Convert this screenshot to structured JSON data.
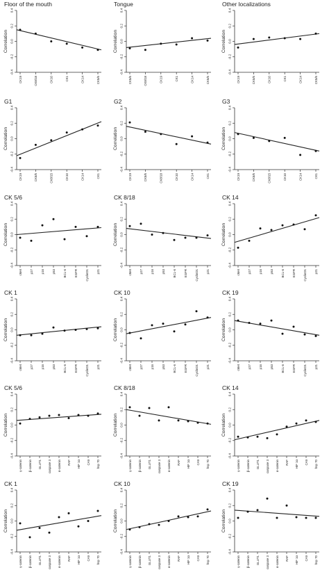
{
  "figure": {
    "panel_count": 18
  },
  "chart_data": [
    {
      "type": "scatter",
      "title": "Floor of the mouth",
      "ylabel": "Correlation",
      "categories": [
        "CK19",
        "CK8/18",
        "CK10",
        "CK1",
        "CK14",
        "CK5/6"
      ],
      "values": [
        0.15,
        0.1,
        0.0,
        -0.03,
        -0.08,
        -0.11
      ],
      "trend": [
        0.15,
        -0.11
      ],
      "ylim": [
        -0.4,
        0.4
      ],
      "yticks": [
        "-0.4",
        "-0.2",
        "0.0",
        "0.2",
        "0.4"
      ]
    },
    {
      "type": "scatter",
      "title": "Tongue",
      "ylabel": "Correlation",
      "categories": [
        "CK5/6",
        "CK8/18",
        "CK19",
        "CK1",
        "CK14",
        "CK5/6"
      ],
      "values": [
        -0.09,
        -0.11,
        -0.03,
        -0.04,
        0.04,
        0.01
      ],
      "trend": [
        -0.08,
        0.04
      ],
      "ylim": [
        -0.4,
        0.4
      ],
      "yticks": [
        "-0.4",
        "-0.2",
        "0.0",
        "0.2",
        "0.4"
      ]
    },
    {
      "type": "scatter",
      "title": "Other localizations",
      "ylabel": "Correlation",
      "categories": [
        "CK19",
        "CK5/6",
        "CK10",
        "CK1",
        "CK14",
        "CK5/6"
      ],
      "values": [
        -0.08,
        0.03,
        0.05,
        0.04,
        0.03,
        0.1
      ],
      "trend": [
        -0.04,
        0.1
      ],
      "ylim": [
        -0.4,
        0.4
      ],
      "yticks": [
        "-0.4",
        "-0.2",
        "0.0",
        "0.2",
        "0.4"
      ]
    },
    {
      "type": "scatter",
      "title": "G1",
      "ylabel": "Correlation",
      "categories": [
        "CK19",
        "CK5/6",
        "CK8/15",
        "CK10",
        "CK14",
        "CK1"
      ],
      "values": [
        -0.25,
        -0.08,
        -0.02,
        0.08,
        0.12,
        0.17
      ],
      "trend": [
        -0.22,
        0.22
      ],
      "ylim": [
        -0.4,
        0.4
      ],
      "yticks": [
        "-0.4",
        "-0.2",
        "0.0",
        "0.2",
        "0.4"
      ]
    },
    {
      "type": "scatter",
      "title": "G2",
      "ylabel": "Correlation",
      "categories": [
        "CK19",
        "CK5/6",
        "CK8/18",
        "CK10",
        "CK14",
        "CK1"
      ],
      "values": [
        0.21,
        0.09,
        0.06,
        -0.07,
        0.03,
        -0.05
      ],
      "trend": [
        0.16,
        -0.07
      ],
      "ylim": [
        -0.4,
        0.4
      ],
      "yticks": [
        "-0.4",
        "-0.2",
        "0.0",
        "0.2",
        "0.4"
      ]
    },
    {
      "type": "scatter",
      "title": "G3",
      "ylabel": "Correlation",
      "categories": [
        "CK19",
        "CK5/6",
        "CK8/15",
        "CK10",
        "CK14",
        "CK1"
      ],
      "values": [
        0.06,
        0.01,
        -0.03,
        0.01,
        -0.21,
        -0.16
      ],
      "trend": [
        0.08,
        -0.16
      ],
      "ylim": [
        -0.4,
        0.4
      ],
      "yticks": [
        "-0.4",
        "-0.2",
        "0.0",
        "0.2",
        "0.4"
      ]
    },
    {
      "type": "scatter",
      "title": "CK 5/6",
      "ylabel": "Correlation",
      "categories": [
        "cMet",
        "p27",
        "p16",
        "p53",
        "BCL-6",
        "EGFR",
        "CyclinD1",
        "p21"
      ],
      "values": [
        -0.04,
        -0.08,
        0.12,
        0.2,
        -0.06,
        0.1,
        -0.02,
        0.1
      ],
      "trend": [
        0.0,
        0.09
      ],
      "ylim": [
        -0.4,
        0.4
      ],
      "yticks": [
        "-0.4",
        "-0.2",
        "0.0",
        "0.2",
        "0.4"
      ]
    },
    {
      "type": "scatter",
      "title": "CK 8/18",
      "ylabel": "Correlation",
      "categories": [
        "cMet",
        "p27",
        "p16",
        "p53",
        "BCL-6",
        "EGFR",
        "CyclinD1",
        "p21"
      ],
      "values": [
        0.11,
        0.14,
        0.0,
        0.02,
        -0.07,
        -0.04,
        -0.04,
        -0.01
      ],
      "trend": [
        0.08,
        -0.05
      ],
      "ylim": [
        -0.4,
        0.4
      ],
      "yticks": [
        "-0.4",
        "-0.2",
        "0.0",
        "0.2",
        "0.4"
      ]
    },
    {
      "type": "scatter",
      "title": "CK 14",
      "ylabel": "Correlation",
      "categories": [
        "cMet",
        "p27",
        "p16",
        "p53",
        "BCL-6",
        "EGFR",
        "CyclinD1",
        "p21"
      ],
      "values": [
        -0.17,
        -0.08,
        0.08,
        0.06,
        0.12,
        0.13,
        0.07,
        0.25
      ],
      "trend": [
        -0.1,
        0.22
      ],
      "ylim": [
        -0.4,
        0.4
      ],
      "yticks": [
        "-0.4",
        "-0.2",
        "0.0",
        "0.2",
        "0.4"
      ]
    },
    {
      "type": "scatter",
      "title": "CK 1",
      "ylabel": "Correlation",
      "categories": [
        "cMet",
        "p27",
        "p16",
        "p53",
        "BCL-6",
        "EGFR",
        "CyclinD1",
        "p21"
      ],
      "values": [
        -0.07,
        -0.07,
        -0.05,
        0.03,
        -0.01,
        0.0,
        0.01,
        0.02
      ],
      "trend": [
        -0.07,
        0.04
      ],
      "ylim": [
        -0.4,
        0.4
      ],
      "yticks": [
        "-0.4",
        "-0.2",
        "0.0",
        "0.2",
        "0.4"
      ]
    },
    {
      "type": "scatter",
      "title": "CK 10",
      "ylabel": "Correlation",
      "categories": [
        "cMet",
        "p27",
        "p16",
        "p53",
        "BCL-6",
        "EGFR",
        "CyclinD1",
        "p21"
      ],
      "values": [
        -0.04,
        -0.11,
        0.06,
        0.08,
        -0.02,
        0.07,
        0.24,
        0.16
      ],
      "trend": [
        -0.05,
        0.16
      ],
      "ylim": [
        -0.4,
        0.4
      ],
      "yticks": [
        "-0.4",
        "-0.2",
        "0.0",
        "0.2",
        "0.4"
      ]
    },
    {
      "type": "scatter",
      "title": "CK 19",
      "ylabel": "Correlation",
      "categories": [
        "cMet",
        "p27",
        "p16",
        "p53",
        "BCL-6",
        "EGFR",
        "CyclinD1",
        "p21"
      ],
      "values": [
        0.12,
        0.09,
        0.08,
        0.12,
        -0.05,
        0.04,
        -0.06,
        -0.08
      ],
      "trend": [
        0.12,
        -0.07
      ],
      "ylim": [
        -0.4,
        0.4
      ],
      "yticks": [
        "-0.4",
        "-0.2",
        "0.0",
        "0.2",
        "0.4"
      ]
    },
    {
      "type": "scatter",
      "title": "CK 5/6",
      "ylabel": "Correlation",
      "categories": [
        "γ-catenin",
        "β-catenin",
        "GLUT1",
        "caspase 3",
        "α-catenin",
        "RAF",
        "HIF 1α",
        "CA9",
        "hsp 70"
      ],
      "values": [
        0.02,
        0.08,
        0.1,
        0.12,
        0.13,
        0.09,
        0.13,
        0.12,
        0.15
      ],
      "trend": [
        0.06,
        0.14
      ],
      "ylim": [
        -0.4,
        0.4
      ],
      "yticks": [
        "-0.4",
        "-0.2",
        "0.0",
        "0.2",
        "0.4"
      ]
    },
    {
      "type": "scatter",
      "title": "CK 8/18",
      "ylabel": "Correlation",
      "categories": [
        "γ-catenin",
        "β-catenin",
        "GLUT1",
        "caspase 3",
        "α-catenin",
        "RAF",
        "HIF 1α",
        "CA9",
        "hsp 70"
      ],
      "values": [
        0.23,
        0.12,
        0.22,
        0.06,
        0.23,
        0.06,
        0.05,
        0.03,
        0.02
      ],
      "trend": [
        0.2,
        0.01
      ],
      "ylim": [
        -0.4,
        0.4
      ],
      "yticks": [
        "-0.4",
        "-0.2",
        "0.0",
        "0.2",
        "0.4"
      ]
    },
    {
      "type": "scatter",
      "title": "CK 14",
      "ylabel": "Correlation",
      "categories": [
        "γ-catenin",
        "β-catenin",
        "GLUT1",
        "caspase 3",
        "α-catenin",
        "RAF",
        "HIF 1α",
        "CA9",
        "hsp 70"
      ],
      "values": [
        -0.15,
        -0.16,
        -0.15,
        -0.17,
        -0.12,
        -0.02,
        0.02,
        0.06,
        0.04
      ],
      "trend": [
        -0.19,
        0.06
      ],
      "ylim": [
        -0.4,
        0.4
      ],
      "yticks": [
        "-0.4",
        "-0.2",
        "0.0",
        "0.2",
        "0.4"
      ]
    },
    {
      "type": "scatter",
      "title": "CK 1",
      "ylabel": "Correlation",
      "categories": [
        "γ-catenin",
        "β-catenin",
        "GLUT1",
        "caspase 3",
        "α-catenin",
        "RAF",
        "HIF 1α",
        "CA9",
        "hsp 70"
      ],
      "values": [
        -0.03,
        -0.21,
        -0.09,
        -0.15,
        0.05,
        0.1,
        -0.07,
        0.0,
        0.13
      ],
      "trend": [
        -0.12,
        0.07
      ],
      "ylim": [
        -0.4,
        0.4
      ],
      "yticks": [
        "-0.4",
        "-0.2",
        "0.0",
        "0.2",
        "0.4"
      ]
    },
    {
      "type": "scatter",
      "title": "CK 10",
      "ylabel": "Correlation",
      "categories": [
        "γ-catenin",
        "β-catenin",
        "GLUT1",
        "caspase 3",
        "α-catenin",
        "RAF",
        "HIF 1α",
        "CA9",
        "hsp 70"
      ],
      "values": [
        -0.11,
        -0.08,
        -0.04,
        -0.05,
        0.0,
        0.06,
        0.05,
        0.06,
        0.15
      ],
      "trend": [
        -0.11,
        0.13
      ],
      "ylim": [
        -0.4,
        0.4
      ],
      "yticks": [
        "-0.4",
        "-0.2",
        "0.0",
        "0.2",
        "0.4"
      ]
    },
    {
      "type": "scatter",
      "title": "CK 19",
      "ylabel": "Correlation",
      "categories": [
        "γ-catenin",
        "β-catenin",
        "GLUT1",
        "caspase 3",
        "α-catenin",
        "RAF",
        "HIF 1α",
        "CA9",
        "hsp 70"
      ],
      "values": [
        0.04,
        0.12,
        0.14,
        0.29,
        0.04,
        0.2,
        0.05,
        0.04,
        0.04
      ],
      "trend": [
        0.14,
        0.06
      ],
      "ylim": [
        -0.4,
        0.4
      ],
      "yticks": [
        "-0.4",
        "-0.2",
        "0.0",
        "0.2",
        "0.4"
      ]
    }
  ]
}
